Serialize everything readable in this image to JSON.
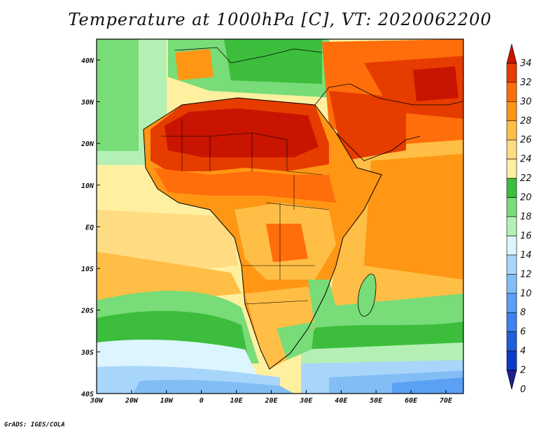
{
  "title": "Temperature at 1000hPa [C], VT: 2020062200",
  "footer": "GrADS: IGES/COLA",
  "chart_data": {
    "type": "heatmap",
    "variable": "Temperature at 1000hPa",
    "units": "C",
    "valid_time": "2020062200",
    "lon_range": [
      -30,
      75
    ],
    "lat_range": [
      -40,
      45
    ],
    "x_tick_labels": [
      "30W",
      "20W",
      "10W",
      "0",
      "10E",
      "20E",
      "30E",
      "40E",
      "50E",
      "60E",
      "70E"
    ],
    "x_tick_values": [
      -30,
      -20,
      -10,
      0,
      10,
      20,
      30,
      40,
      50,
      60,
      70
    ],
    "y_tick_labels": [
      "40N",
      "30N",
      "20N",
      "10N",
      "EQ",
      "10S",
      "20S",
      "30S",
      "40S"
    ],
    "y_tick_values": [
      40,
      30,
      20,
      10,
      0,
      -10,
      -20,
      -30,
      -40
    ],
    "colorbar": {
      "levels": [
        0,
        2,
        4,
        6,
        8,
        10,
        12,
        14,
        16,
        18,
        20,
        22,
        24,
        26,
        28,
        30,
        32,
        34
      ],
      "labels": [
        "34",
        "32",
        "30",
        "28",
        "26",
        "24",
        "22",
        "20",
        "18",
        "16",
        "14",
        "12",
        "10",
        "8",
        "6",
        "4",
        "2",
        "0"
      ],
      "colors": [
        "#1e1e8c",
        "#0a3cc8",
        "#1f5fdc",
        "#3c82f0",
        "#5aa0f5",
        "#82bef5",
        "#a8d5fa",
        "#dcf5ff",
        "#b4f0b4",
        "#78dc78",
        "#3cbe3c",
        "#fff0a0",
        "#ffdc82",
        "#ffbe46",
        "#ff9614",
        "#ff6e0a",
        "#e63c00",
        "#c81400"
      ]
    }
  }
}
